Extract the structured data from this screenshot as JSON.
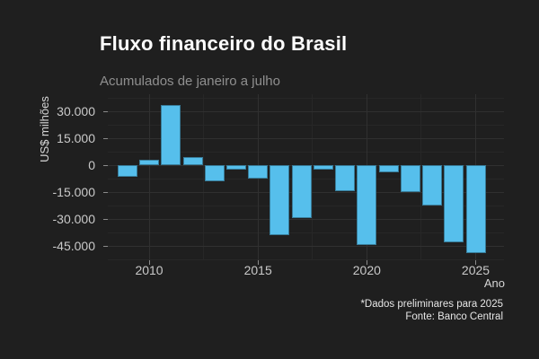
{
  "header": {
    "title": "Fluxo financeiro do Brasil",
    "subtitle": "Acumulados de janeiro a julho"
  },
  "chart_data": {
    "type": "bar",
    "title": "Fluxo financeiro do Brasil",
    "subtitle": "Acumulados de janeiro a julho",
    "xlabel": "Ano",
    "ylabel": "US$ milhões",
    "categories": [
      2009,
      2010,
      2011,
      2012,
      2013,
      2014,
      2015,
      2016,
      2017,
      2018,
      2019,
      2020,
      2021,
      2022,
      2023,
      2024,
      2025
    ],
    "values": [
      -6400,
      3200,
      33400,
      4400,
      -9200,
      -2700,
      -7400,
      -39000,
      -29700,
      -2500,
      -14600,
      -44600,
      -4200,
      -15100,
      -22300,
      -42800,
      -49100
    ],
    "unit": "US$ milhões",
    "ylim": [
      -53000,
      39500
    ],
    "xlim": [
      2008.1,
      2026.3
    ],
    "grid": true,
    "legend": false,
    "y_major_ticks": [
      {
        "value": 30000,
        "label": "30.000"
      },
      {
        "value": 15000,
        "label": "15.000"
      },
      {
        "value": 0,
        "label": "0"
      },
      {
        "value": -15000,
        "label": "-15.000"
      },
      {
        "value": -30000,
        "label": "-30.000"
      },
      {
        "value": -45000,
        "label": "-45.000"
      }
    ],
    "y_minor_ticks": [
      37500,
      22500,
      7500,
      -7500,
      -22500,
      -37500,
      -52500
    ],
    "x_major_ticks": [
      {
        "value": 2010,
        "label": "2010"
      },
      {
        "value": 2015,
        "label": "2015"
      },
      {
        "value": 2020,
        "label": "2020"
      },
      {
        "value": 2025,
        "label": "2025"
      }
    ],
    "x_minor_ticks": [
      2012.5,
      2017.5,
      2022.5
    ]
  },
  "footer": {
    "note": "*Dados preliminares para 2025",
    "source": "Fonte: Banco Central"
  },
  "colors": {
    "background": "#1f1f1f",
    "bar_fill": "#56bfec",
    "grid_major": "#303030",
    "grid_minor": "#272727",
    "title_text": "#ffffff",
    "subtitle_text": "#8f8f8f",
    "axis_text": "#c9c9c9",
    "axis_title_text": "#d6d6d6",
    "caption_text": "#e6e6e6",
    "tick_mark": "#8a8a8a"
  }
}
